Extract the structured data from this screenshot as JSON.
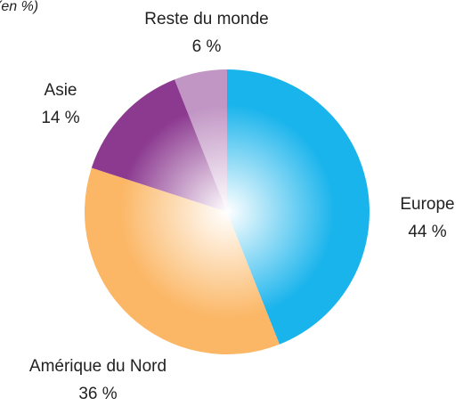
{
  "chart_data": {
    "type": "pie",
    "subtitle": "(en %)",
    "categories": [
      "Europe",
      "Amérique du Nord",
      "Asie",
      "Reste du monde"
    ],
    "values": [
      44,
      36,
      14,
      6
    ],
    "value_labels": [
      "44 %",
      "36 %",
      "14 %",
      "6 %"
    ],
    "colors": [
      "#1ab4ec",
      "#fbb766",
      "#8c3a90",
      "#c195c4"
    ]
  }
}
